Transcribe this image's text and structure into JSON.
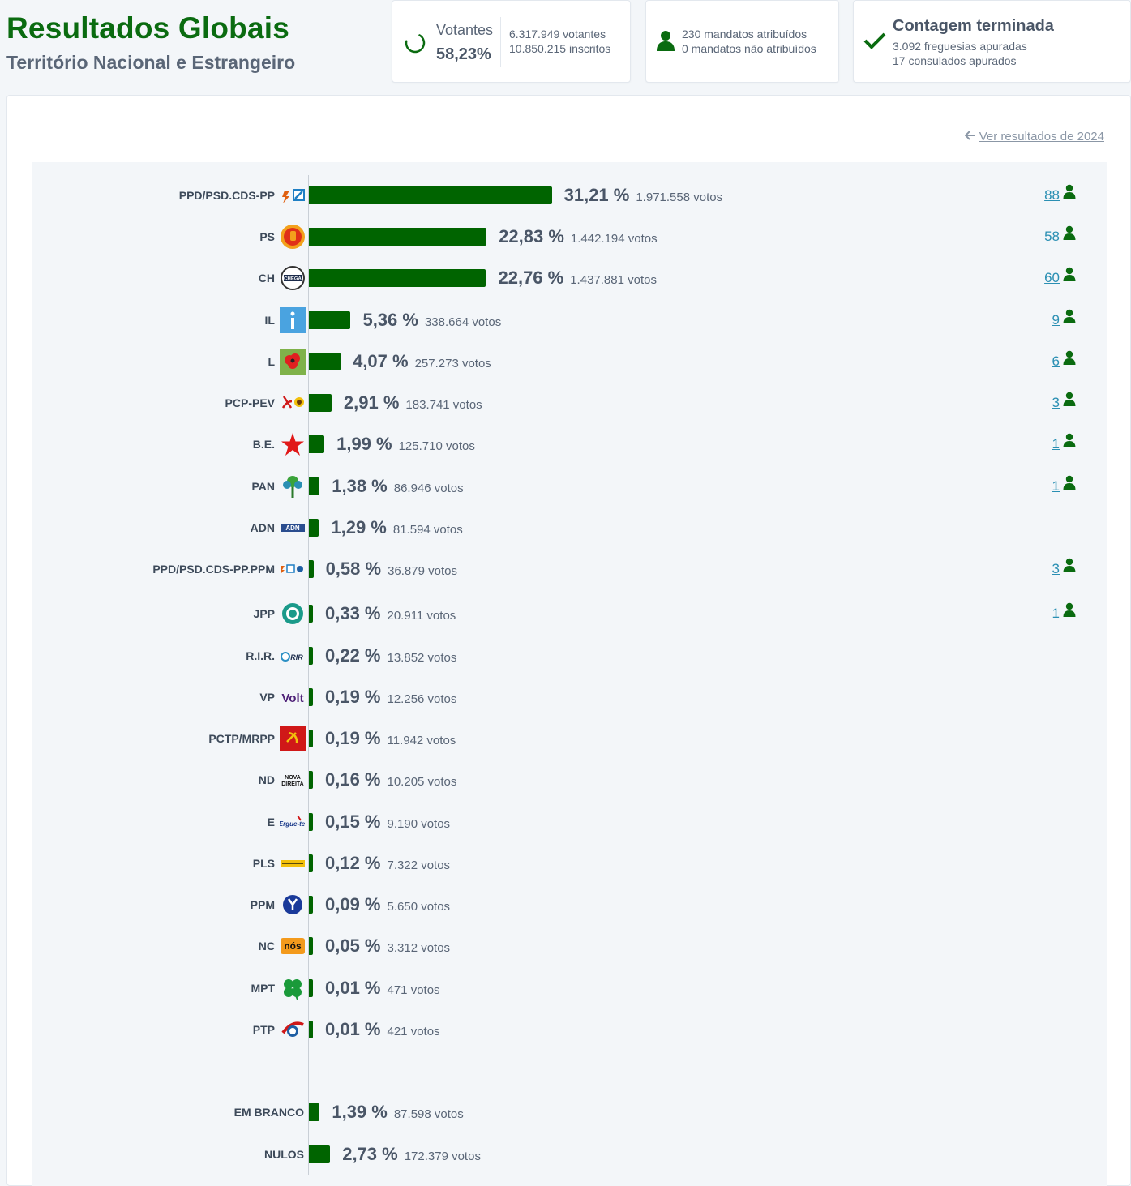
{
  "header": {
    "title": "Resultados Globais",
    "subtitle": "Território Nacional e Estrangeiro"
  },
  "voters_card": {
    "label": "Votantes",
    "percent": "58,23%",
    "votantes": "6.317.949 votantes",
    "inscritos": "10.850.215 inscritos"
  },
  "mandates_card": {
    "atribuidos": "230 mandatos atribuídos",
    "nao_atribuidos": "0 mandatos não atribuídos"
  },
  "count_card": {
    "title": "Contagem terminada",
    "freguesias": "3.092 freguesias apuradas",
    "consulados": "17 consulados apurados"
  },
  "prev_link": "Ver resultados de 2024",
  "colors": {
    "bar": "#006400",
    "title": "#0a6b10",
    "link": "#2a8fb3"
  },
  "chart_data": {
    "type": "bar",
    "orientation": "horizontal",
    "categories": [
      "PPD/PSD.CDS-PP",
      "PS",
      "CH",
      "IL",
      "L",
      "PCP-PEV",
      "B.E.",
      "PAN",
      "ADN",
      "PPD/PSD.CDS-PP.PPM",
      "JPP",
      "R.I.R.",
      "VP",
      "PCTP/MRPP",
      "ND",
      "E",
      "PLS",
      "PPM",
      "NC",
      "MPT",
      "PTP",
      "EM BRANCO",
      "NULOS"
    ],
    "values": [
      31.21,
      22.83,
      22.76,
      5.36,
      4.07,
      2.91,
      1.99,
      1.38,
      1.29,
      0.58,
      0.33,
      0.22,
      0.19,
      0.19,
      0.16,
      0.15,
      0.12,
      0.09,
      0.05,
      0.01,
      0.01,
      1.39,
      2.73
    ],
    "pct_labels": [
      "31,21 %",
      "22,83 %",
      "22,76 %",
      "5,36 %",
      "4,07 %",
      "2,91 %",
      "1,99 %",
      "1,38 %",
      "1,29 %",
      "0,58 %",
      "0,33 %",
      "0,22 %",
      "0,19 %",
      "0,19 %",
      "0,16 %",
      "0,15 %",
      "0,12 %",
      "0,09 %",
      "0,05 %",
      "0,01 %",
      "0,01 %",
      "1,39 %",
      "2,73 %"
    ],
    "votes": [
      "1.971.558 votos",
      "1.442.194 votos",
      "1.437.881 votos",
      "338.664 votos",
      "257.273 votos",
      "183.741 votos",
      "125.710 votos",
      "86.946 votos",
      "81.594 votos",
      "36.879 votos",
      "20.911 votos",
      "13.852 votos",
      "12.256 votos",
      "11.942 votos",
      "10.205 votos",
      "9.190 votos",
      "7.322 votos",
      "5.650 votos",
      "3.312 votos",
      "471 votos",
      "421 votos",
      "87.598 votos",
      "172.379 votos"
    ],
    "seats": [
      "88",
      "58",
      "60",
      "9",
      "6",
      "3",
      "1",
      "1",
      "",
      "3",
      "1",
      "",
      "",
      "",
      "",
      "",
      "",
      "",
      "",
      "",
      "",
      "",
      ""
    ],
    "logos": [
      "psd-cds-logo",
      "ps-fist-rose-logo",
      "chega-logo",
      "il-logo",
      "livre-poppy-logo",
      "cdu-hammer-sunflower-logo",
      "be-star-logo",
      "pan-tree-logo",
      "adn-logo",
      "ad-ppm-logo",
      "jpp-logo",
      "rir-logo",
      "volt-logo",
      "pctp-logo",
      "nova-direita-logo",
      "ergue-te-logo",
      "pls-logo",
      "ppm-logo",
      "nc-logo",
      "mpt-clover-logo",
      "ptp-logo",
      "",
      ""
    ]
  }
}
